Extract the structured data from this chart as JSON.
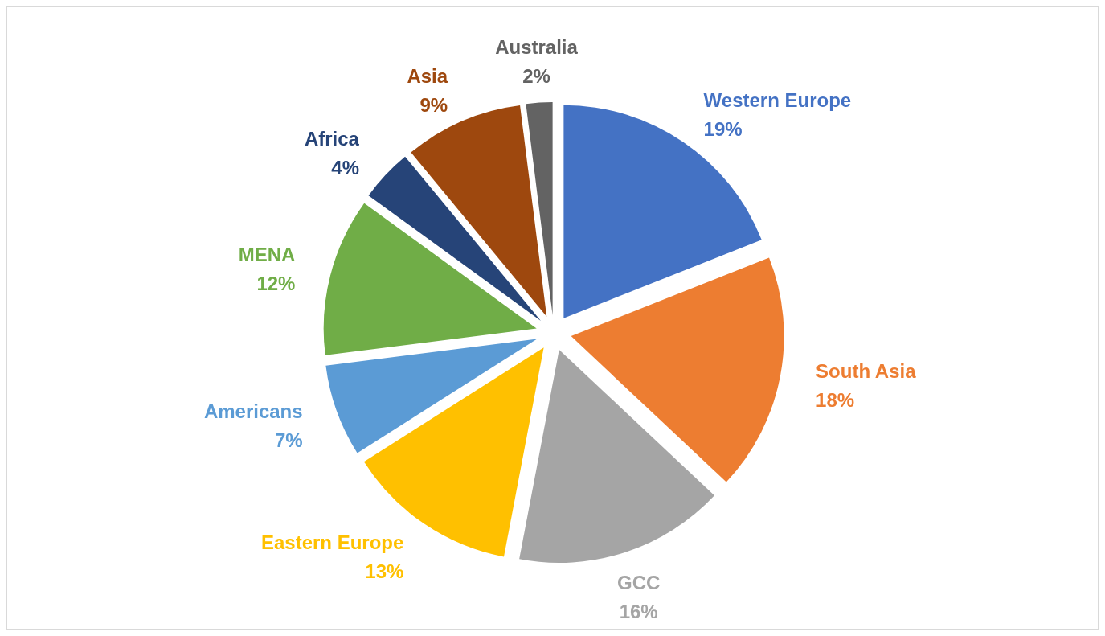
{
  "chart_data": {
    "type": "pie",
    "categories": [
      "Western Europe",
      "South Asia",
      "GCC",
      "Eastern Europe",
      "Americans",
      "MENA",
      "Africa",
      "Asia",
      "Australia"
    ],
    "values": [
      19,
      18,
      16,
      13,
      7,
      12,
      4,
      9,
      2
    ],
    "value_labels": [
      "19%",
      "18%",
      "16%",
      "13%",
      "7%",
      "12%",
      "4%",
      "9%",
      "2%"
    ],
    "colors": [
      "#4472c4",
      "#ed7d31",
      "#a5a5a5",
      "#ffc000",
      "#5b9bd5",
      "#70ad47",
      "#264478",
      "#9e480e",
      "#636363"
    ],
    "legend": false
  }
}
